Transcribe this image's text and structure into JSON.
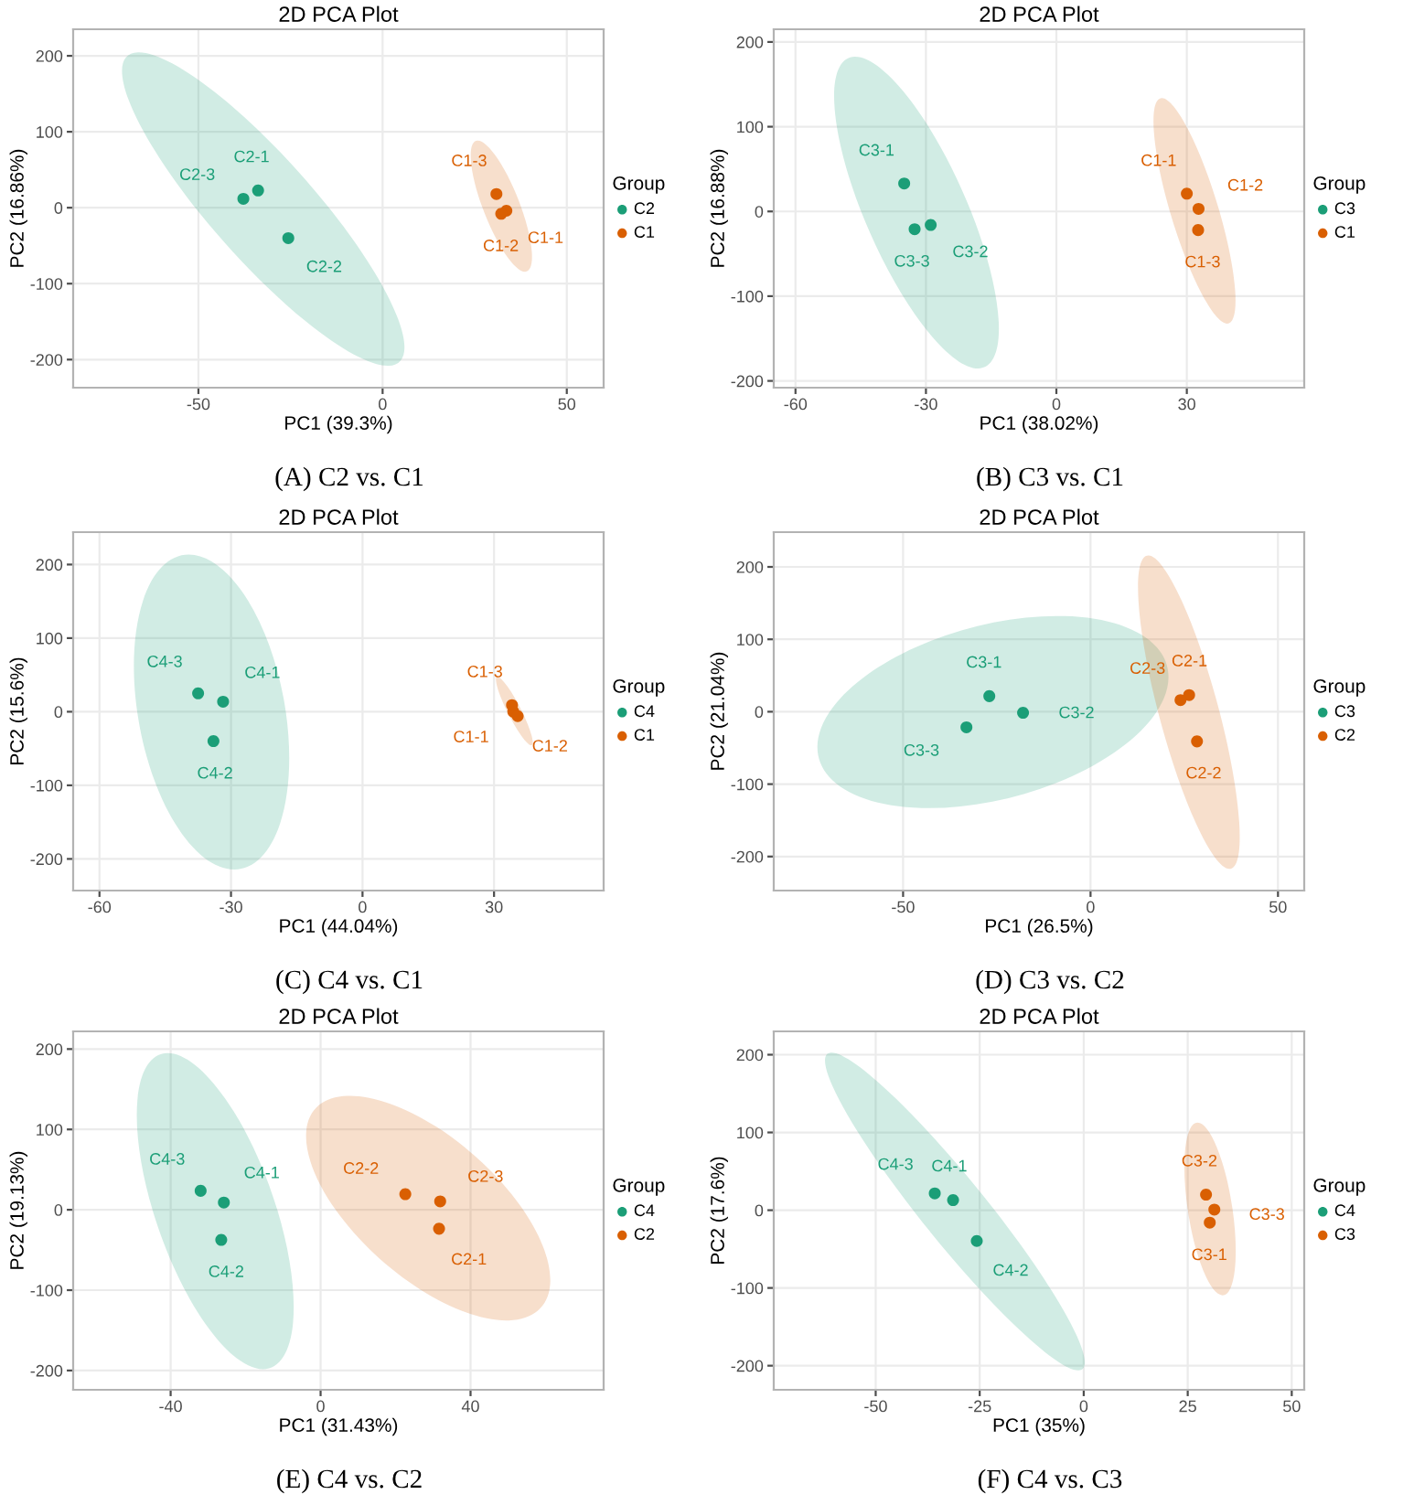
{
  "chart_data": [
    {
      "type": "scatter",
      "title": "2D PCA Plot",
      "xlabel": "PC1 (39.3%)",
      "ylabel": "PC2 (16.86%)",
      "legend_title": "Group",
      "legend": "right",
      "grid": true,
      "marker": "circle",
      "xlim": [
        -84,
        60
      ],
      "ylim": [
        -237,
        235
      ],
      "xticks": [
        -50,
        0,
        50
      ],
      "yticks": [
        -200,
        -100,
        0,
        100,
        200
      ],
      "series": [
        {
          "name": "C2",
          "color": "#1b9e77",
          "x": [
            -33.8,
            -25.6,
            -37.8
          ],
          "values": [
            22.7,
            -40,
            11.7
          ]
        },
        {
          "name": "C1",
          "color": "#d95f02",
          "x": [
            33.6,
            32.2,
            30.9
          ],
          "values": [
            -4,
            -8,
            18
          ]
        }
      ],
      "annotations": [
        {
          "text": "C2-1",
          "x": -33.8,
          "y": 22.7
        },
        {
          "text": "C2-2",
          "x": -25.6,
          "y": -40
        },
        {
          "text": "C2-3",
          "x": -37.8,
          "y": 11.7
        },
        {
          "text": "C1-1",
          "x": 33.6,
          "y": -4
        },
        {
          "text": "C1-2",
          "x": 32.2,
          "y": -8
        },
        {
          "text": "C1-3",
          "x": 30.9,
          "y": 18
        },
        "(A) C2 vs. C1"
      ]
    },
    {
      "type": "scatter",
      "title": "2D PCA Plot",
      "xlabel": "PC1 (38.02%)",
      "ylabel": "PC2 (16.88%)",
      "legend_title": "Group",
      "legend": "right",
      "grid": true,
      "marker": "circle",
      "xlim": [
        -65,
        57
      ],
      "ylim": [
        -208,
        215
      ],
      "xticks": [
        -60,
        -30,
        0,
        30
      ],
      "yticks": [
        -200,
        -100,
        0,
        100,
        200
      ],
      "series": [
        {
          "name": "C3",
          "color": "#1b9e77",
          "x": [
            -35,
            -28.9,
            -32.6
          ],
          "values": [
            33,
            -16,
            -21
          ]
        },
        {
          "name": "C1",
          "color": "#d95f02",
          "x": [
            30,
            32.7,
            32.6
          ],
          "values": [
            21,
            3,
            -22
          ]
        }
      ],
      "annotations": [
        {
          "text": "C3-1",
          "x": -35,
          "y": 33
        },
        {
          "text": "C3-2",
          "x": -28.9,
          "y": -16
        },
        {
          "text": "C3-3",
          "x": -32.6,
          "y": -21
        },
        {
          "text": "C1-1",
          "x": 30,
          "y": 21
        },
        {
          "text": "C1-2",
          "x": 32.7,
          "y": 3
        },
        {
          "text": "C1-3",
          "x": 32.6,
          "y": -22
        },
        "(B) C3 vs. C1"
      ]
    },
    {
      "type": "scatter",
      "title": "2D PCA Plot",
      "xlabel": "PC1 (44.04%)",
      "ylabel": "PC2 (15.6%)",
      "legend_title": "Group",
      "legend": "right",
      "grid": true,
      "marker": "circle",
      "xlim": [
        -66,
        55
      ],
      "ylim": [
        -243,
        244
      ],
      "xticks": [
        -60,
        -30,
        0,
        30
      ],
      "yticks": [
        -200,
        -100,
        0,
        100,
        200
      ],
      "series": [
        {
          "name": "C4",
          "color": "#1b9e77",
          "x": [
            -31.8,
            -34,
            -37.5
          ],
          "values": [
            13.6,
            -40,
            25
          ]
        },
        {
          "name": "C1",
          "color": "#d95f02",
          "x": [
            34.4,
            35.4,
            34.1
          ],
          "values": [
            0,
            -6,
            9
          ]
        }
      ],
      "annotations": [
        {
          "text": "C4-1",
          "x": -31.8,
          "y": 13.6
        },
        {
          "text": "C4-2",
          "x": -34,
          "y": -40
        },
        {
          "text": "C4-3",
          "x": -37.5,
          "y": 25
        },
        {
          "text": "C1-1",
          "x": 34.4,
          "y": 0
        },
        {
          "text": "C1-2",
          "x": 35.4,
          "y": -6
        },
        {
          "text": "C1-3",
          "x": 34.1,
          "y": 9
        },
        "(C) C4 vs. C1"
      ]
    },
    {
      "type": "scatter",
      "title": "2D PCA Plot",
      "xlabel": "PC1 (26.5%)",
      "ylabel": "PC2 (21.04%)",
      "legend_title": "Group",
      "legend": "right",
      "grid": true,
      "marker": "circle",
      "xlim": [
        -84.5,
        57
      ],
      "ylim": [
        -247,
        248
      ],
      "xticks": [
        -50,
        0,
        50
      ],
      "yticks": [
        -200,
        -100,
        0,
        100,
        200
      ],
      "series": [
        {
          "name": "C3",
          "color": "#1b9e77",
          "x": [
            -27,
            -18,
            -33.1
          ],
          "values": [
            21.5,
            -1.5,
            -21.5
          ]
        },
        {
          "name": "C2",
          "color": "#d95f02",
          "x": [
            26.3,
            28.4,
            24
          ],
          "values": [
            23,
            -41,
            16
          ]
        }
      ],
      "annotations": [
        {
          "text": "C3-1",
          "x": -27,
          "y": 21.5
        },
        {
          "text": "C3-2",
          "x": -18,
          "y": -1.5
        },
        {
          "text": "C3-3",
          "x": -33.1,
          "y": -21.5
        },
        {
          "text": "C2-1",
          "x": 26.3,
          "y": 23
        },
        {
          "text": "C2-2",
          "x": 28.4,
          "y": -41
        },
        {
          "text": "C2-3",
          "x": 24,
          "y": 16
        },
        "(D) C3 vs. C2"
      ]
    },
    {
      "type": "scatter",
      "title": "2D PCA Plot",
      "xlabel": "PC1 (31.43%)",
      "ylabel": "PC2 (19.13%)",
      "legend_title": "Group",
      "legend": "right",
      "grid": true,
      "marker": "circle",
      "xlim": [
        -66,
        75.5
      ],
      "ylim": [
        -224,
        222
      ],
      "xticks": [
        -40,
        0,
        40
      ],
      "yticks": [
        -200,
        -100,
        0,
        100,
        200
      ],
      "series": [
        {
          "name": "C4",
          "color": "#1b9e77",
          "x": [
            -25.8,
            -26.5,
            -32
          ],
          "values": [
            9,
            -37.5,
            23.6
          ]
        },
        {
          "name": "C2",
          "color": "#d95f02",
          "x": [
            31.6,
            22.6,
            31.9
          ],
          "values": [
            -23.6,
            19.4,
            10.4
          ]
        }
      ],
      "annotations": [
        {
          "text": "C4-1",
          "x": -25.8,
          "y": 9
        },
        {
          "text": "C4-2",
          "x": -26.5,
          "y": -37.5
        },
        {
          "text": "C4-3",
          "x": -32,
          "y": 23.6
        },
        {
          "text": "C2-1",
          "x": 31.6,
          "y": -23.6
        },
        {
          "text": "C2-2",
          "x": 22.6,
          "y": 19.4
        },
        {
          "text": "C2-3",
          "x": 31.9,
          "y": 10.4
        },
        "(E) C4 vs. C2"
      ]
    },
    {
      "type": "scatter",
      "title": "2D PCA Plot",
      "xlabel": "PC1 (35%)",
      "ylabel": "PC2 (17.6%)",
      "legend_title": "Group",
      "legend": "right",
      "grid": true,
      "marker": "circle",
      "xlim": [
        -74.5,
        53
      ],
      "ylim": [
        -231,
        230
      ],
      "xticks": [
        -50,
        -25,
        0,
        25,
        50
      ],
      "yticks": [
        -200,
        -100,
        0,
        100,
        200
      ],
      "series": [
        {
          "name": "C4",
          "color": "#1b9e77",
          "x": [
            -31.4,
            -25.7,
            -35.8
          ],
          "values": [
            13,
            -39.6,
            21.6
          ]
        },
        {
          "name": "C3",
          "color": "#d95f02",
          "x": [
            30.3,
            29.4,
            31.4
          ],
          "values": [
            -16,
            20,
            0.7
          ]
        }
      ],
      "annotations": [
        {
          "text": "C4-1",
          "x": -31.4,
          "y": 13
        },
        {
          "text": "C4-2",
          "x": -25.7,
          "y": -39.6
        },
        {
          "text": "C4-3",
          "x": -35.8,
          "y": 21.6
        },
        {
          "text": "C3-1",
          "x": 30.3,
          "y": -16
        },
        {
          "text": "C3-2",
          "x": 29.4,
          "y": 20
        },
        {
          "text": "C3-3",
          "x": 31.4,
          "y": 0.7
        },
        "(F) C4 vs. C3"
      ]
    }
  ]
}
